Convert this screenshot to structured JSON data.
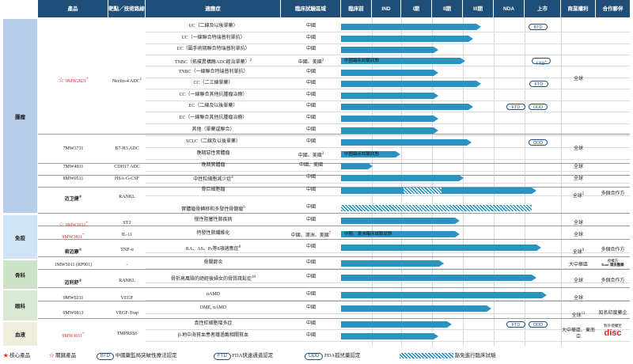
{
  "headers": {
    "product": "產品",
    "target": "靶點／技術路線",
    "indication": "適應症",
    "region": "臨床試驗區域",
    "preclinical": "臨床前",
    "ind": "IND",
    "p1": "I期",
    "p2": "II期",
    "p3": "III期",
    "nda": "NDA",
    "market": "上市",
    "rights": "商業權利",
    "partner": "合作夥伴"
  },
  "categories": {
    "oncology": "腫瘤",
    "immunology": "免疫",
    "bone": "骨科",
    "ophthalmology": "眼科",
    "blood": "血液"
  },
  "products": {
    "p1": "9MW2821",
    "p1_sup": "*",
    "p1_target": "Nectin-4 ADC",
    "p1_target_sup": "1",
    "p2": "7MW3711",
    "p2_target": "B7-H3 ADC",
    "p3": "7MW4911",
    "p3_target": "CDH17 ADC",
    "p4": "8MW0511",
    "p4_target": "HSA-G-CSF",
    "p5": "迈卫健",
    "p5_sup": "®",
    "p5_target": "RANKL",
    "p6": "9MW1911",
    "p6_sup": "*",
    "p6_target": "ST2",
    "p7": "9MW3811",
    "p7_sup": "*",
    "p7_target": "IL-11",
    "p8": "君迈康",
    "p8_sup": "®",
    "p8_target": "TNF-α",
    "p9": "1MW5011 (RP901)",
    "p9_target": "-",
    "p10": "迈利舒",
    "p10_sup": "®",
    "p10_target": "RANKL",
    "p11": "9MW0211",
    "p11_target": "VEGF",
    "p12": "9MW0813",
    "p12_target": "VEGF-Trap",
    "p13": "9MW3011",
    "p13_sup": "*",
    "p13_target": "TMPRSS6"
  },
  "rows": [
    {
      "ind": "UC（二線及以後單藥）",
      "region": "中國"
    },
    {
      "ind": "UC（一線聯合特瑞普利單抗）",
      "region": "中國"
    },
    {
      "ind": "UC（圍手術期聯合特瑞普利單抗）",
      "region": "中國"
    },
    {
      "ind": "TNBC（拓撲異構酶ADC經治單藥）",
      "ind_sup": "2",
      "region": "中國、美國",
      "region_sup": "3",
      "bar_text": "中國臨床試驗狀態"
    },
    {
      "ind": "TNBC（一線聯合特瑞普利單抗）",
      "region": "中國"
    },
    {
      "ind": "CC（二三線單藥）",
      "region": "中國"
    },
    {
      "ind": "CC（一線聯合其他抗腫瘤治療）",
      "region": "中國"
    },
    {
      "ind": "EC（二線及以後單藥）",
      "region": "中國"
    },
    {
      "ind": "EC（一線聯合其他抗腫瘤治療）",
      "region": "中國"
    },
    {
      "ind": "其他（單藥或聯合）",
      "region": "中國"
    },
    {
      "ind": "SCLC（二線及以後單藥）",
      "region": "中國"
    },
    {
      "ind": "晚期惡性實體瘤",
      "region": "中國、美國",
      "region_sup": "3",
      "bar_text": "中國臨床試驗狀態"
    },
    {
      "ind": "晚期實體瘤",
      "region": "中國、美國"
    },
    {
      "ind": "中性粒細胞減少症",
      "ind_sup": "4",
      "region": "中國"
    },
    {
      "ind": "骨巨細胞瘤",
      "region": "中國"
    },
    {
      "ind": "實體瘤骨轉移和多發性骨髓瘤",
      "ind_sup": "6",
      "region": "中國"
    },
    {
      "ind": "慢性阻塞性肺疾病",
      "region": "中國"
    },
    {
      "ind": "特發性肺纖維化",
      "region": "中國、澳洲、美國",
      "region_sup": "7",
      "bar_text": "中國、澳洲臨床試驗狀態"
    },
    {
      "ind": "RA、AS、Ps等8項適應症",
      "ind_sup": "8",
      "region": "中國"
    },
    {
      "ind": "骨關節炎",
      "region": "中國"
    },
    {
      "ind": "骨折高風險的絕經後婦女的骨質疏鬆症",
      "ind_sup": "10",
      "region": "中國"
    },
    {
      "ind": "nAMD",
      "region": "中國"
    },
    {
      "ind": "DME, nAMD",
      "region": "中國"
    },
    {
      "ind": "真性紅細胞增多症",
      "region": "中國"
    },
    {
      "ind": "β-地中海貧血患者鐵過載相關貧血",
      "region": "中國"
    }
  ],
  "rights": {
    "r1": "全球",
    "r2": "全球",
    "r3": "全球",
    "r4": "全球",
    "r5": "全球",
    "r5_sup": "5",
    "r6": "全球",
    "r7": "全球",
    "r8": "全球",
    "r8_sup": "9",
    "r9": "大中華區",
    "r10": "全球",
    "r11": "全球",
    "r12": "全球",
    "r12_sup": "11",
    "r13": "大中華區、東南亞"
  },
  "partners": {
    "pa5": "多個合作方",
    "pa8": "多個合作方",
    "pa9_a": "授權方",
    "pa9_b": "Rani",
    "pa9_c": "潤良醫藥",
    "pa10": "多個合作方",
    "pa12": "知名印度藥企",
    "pa13_a": "對外授權至",
    "pa13_b": "disc"
  },
  "pills": {
    "btd": "BTD",
    "ftd": "FTD",
    "ftd_sup": "3",
    "odd": "ODD"
  },
  "legend": {
    "core": "核心產品",
    "key": "關鍵產品",
    "btd": "BTD",
    "btd_text": "中國藥監局突破性療法認定",
    "ftd": "FTD",
    "ftd_text": "FDA快速通道認定",
    "odd": "ODD",
    "odd_text": "FDA孤兒藥認定",
    "hatch_text": "豁免進行臨床試驗"
  },
  "colors": {
    "header": "#1f4e79",
    "bar": "#2a93c4",
    "oncology": "#b7cde9",
    "immunology": "#d0e4f5",
    "bone": "#cde3c8",
    "ophthalmology": "#d8e8d2",
    "blood": "#efeedc",
    "red": "#d9262c"
  }
}
